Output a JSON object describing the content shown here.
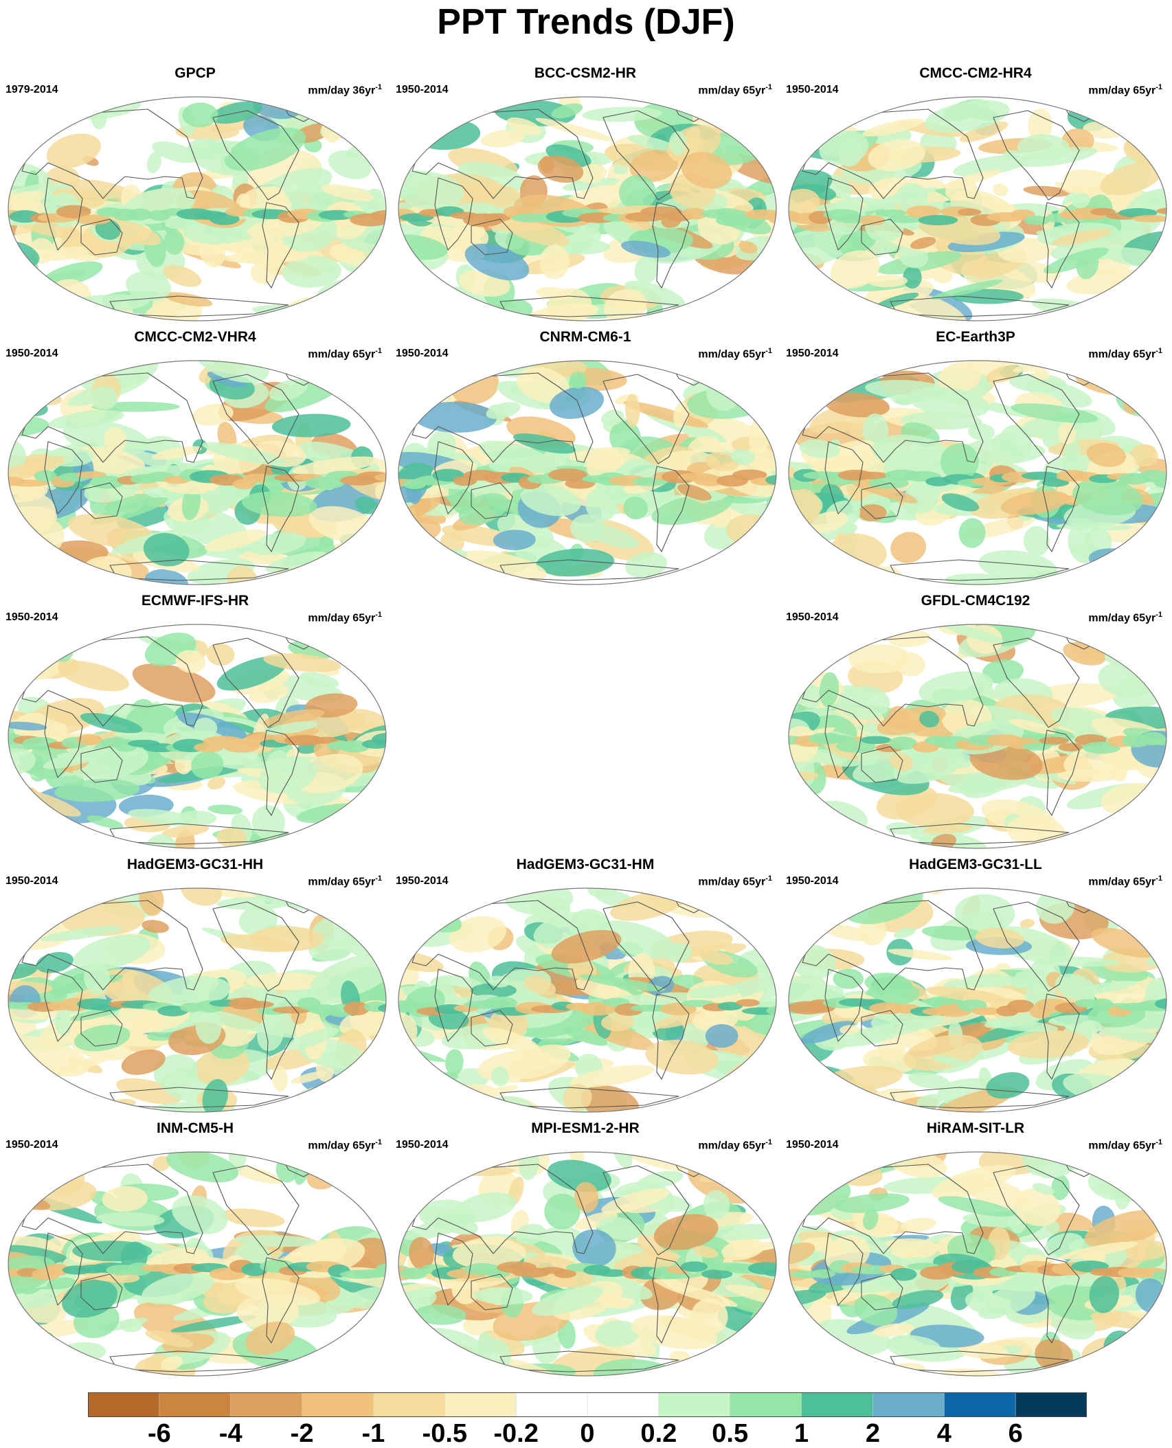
{
  "title": "PPT Trends (DJF)",
  "panels": [
    {
      "title": "GPCP",
      "period": "1979-2014",
      "units": "mm/day 36yr",
      "exp": "-1"
    },
    {
      "title": "BCC-CSM2-HR",
      "period": "1950-2014",
      "units": "mm/day 65yr",
      "exp": "-1"
    },
    {
      "title": "CMCC-CM2-HR4",
      "period": "1950-2014",
      "units": "mm/day 65yr",
      "exp": "-1"
    },
    {
      "title": "CMCC-CM2-VHR4",
      "period": "1950-2014",
      "units": "mm/day 65yr",
      "exp": "-1"
    },
    {
      "title": "CNRM-CM6-1",
      "period": "1950-2014",
      "units": "mm/day 65yr",
      "exp": "-1"
    },
    {
      "title": "EC-Earth3P",
      "period": "1950-2014",
      "units": "mm/day 65yr",
      "exp": "-1"
    },
    {
      "title": "ECMWF-IFS-HR",
      "period": "1950-2014",
      "units": "mm/day 65yr",
      "exp": "-1"
    },
    {
      "title": "GFDL-CM4C192",
      "period": "1950-2014",
      "units": "mm/day 65yr",
      "exp": "-1"
    },
    {
      "title": "HadGEM3-GC31-HH",
      "period": "1950-2014",
      "units": "mm/day 65yr",
      "exp": "-1"
    },
    {
      "title": "HadGEM3-GC31-HM",
      "period": "1950-2014",
      "units": "mm/day 65yr",
      "exp": "-1"
    },
    {
      "title": "HadGEM3-GC31-LL",
      "period": "1950-2014",
      "units": "mm/day 65yr",
      "exp": "-1"
    },
    {
      "title": "INM-CM5-H",
      "period": "1950-2014",
      "units": "mm/day 65yr",
      "exp": "-1"
    },
    {
      "title": "MPI-ESM1-2-HR",
      "period": "1950-2014",
      "units": "mm/day 65yr",
      "exp": "-1"
    },
    {
      "title": "HiRAM-SIT-LR",
      "period": "1950-2014",
      "units": "mm/day 65yr",
      "exp": "-1"
    }
  ],
  "colorbar": {
    "colors": [
      "#b5692a",
      "#cc853f",
      "#dea05f",
      "#f0c27c",
      "#f5dc9c",
      "#fbf0bd",
      "#ffffff",
      "#ffffff",
      "#c8f5c8",
      "#96e6a8",
      "#4dbf99",
      "#6aaecc",
      "#0b67a8",
      "#063a5c"
    ],
    "labels": [
      "-6",
      "-4",
      "-2",
      "-1",
      "-0.5",
      "-0.2",
      "0",
      "0.2",
      "0.5",
      "1",
      "2",
      "4",
      "6"
    ]
  },
  "colors": {
    "coastline": "#555555",
    "border": "#777777"
  }
}
